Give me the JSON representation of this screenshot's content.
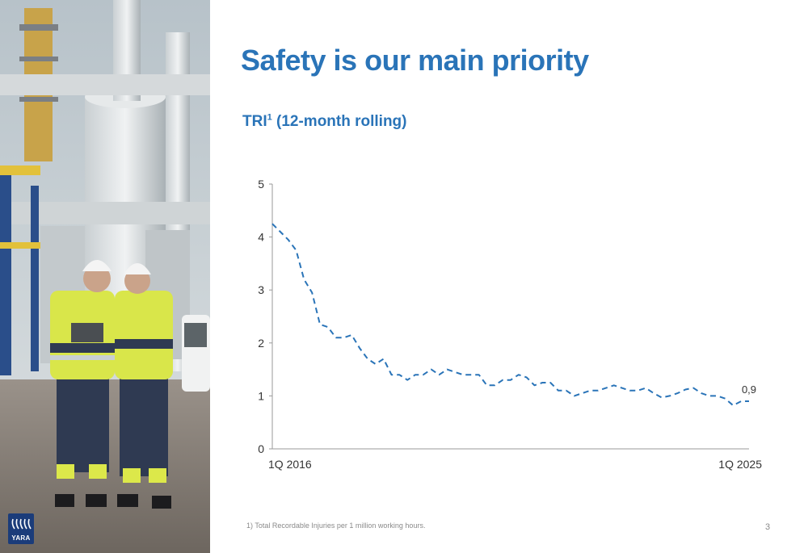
{
  "slide": {
    "title": "Safety is our main priority",
    "subtitle_main": "TRI",
    "subtitle_sup": "1",
    "subtitle_rest": " (12-month rolling)",
    "footnote": "1) Total Recordable Injuries per 1 million working hours.",
    "page_number": "3",
    "logo_text": "YARA"
  },
  "colors": {
    "accent": "#2a74b8",
    "series": "#2a74b8",
    "logo": "#1b3c7a"
  },
  "chart_data": {
    "type": "line",
    "title": "TRI (12-month rolling)",
    "xlabel": "",
    "ylabel": "",
    "ylim": [
      0,
      5
    ],
    "yticks": [
      "0",
      "1",
      "2",
      "3",
      "4",
      "5"
    ],
    "x_tick_labels": [
      "1Q 2016",
      "1Q 2025"
    ],
    "grid": false,
    "line_style": "dashed",
    "end_label": "0,9",
    "series": [
      {
        "values": [
          4.25,
          4.1,
          3.95,
          3.75,
          3.2,
          2.95,
          2.35,
          2.3,
          2.1,
          2.1,
          2.15,
          1.9,
          1.7,
          1.6,
          1.7,
          1.4,
          1.4,
          1.3,
          1.4,
          1.4,
          1.5,
          1.4,
          1.5,
          1.45,
          1.4,
          1.4,
          1.4,
          1.2,
          1.2,
          1.3,
          1.3,
          1.4,
          1.35,
          1.2,
          1.25,
          1.25,
          1.1,
          1.1,
          1.0,
          1.05,
          1.1,
          1.1,
          1.15,
          1.2,
          1.15,
          1.1,
          1.1,
          1.15,
          1.05,
          0.97,
          1.0,
          1.05,
          1.12,
          1.15,
          1.05,
          1.0,
          1.0,
          0.95,
          0.82,
          0.9,
          0.9
        ]
      }
    ]
  }
}
